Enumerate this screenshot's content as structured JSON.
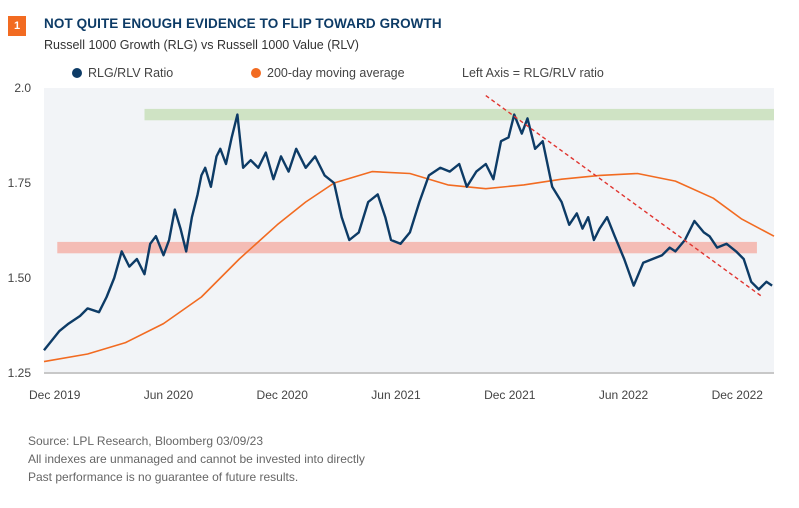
{
  "header": {
    "badge": "1",
    "title": "NOT QUITE ENOUGH EVIDENCE TO FLIP TOWARD GROWTH",
    "subtitle": "Russell 1000 Growth (RLG) vs Russell 1000 Value (RLV)"
  },
  "legend": {
    "items": [
      {
        "label": "RLG/RLV Ratio",
        "color": "#0d3b66",
        "icon": "circle-dot-icon"
      },
      {
        "label": "200-day moving average",
        "color": "#f26b21",
        "icon": "circle-dot-icon"
      }
    ],
    "note": "Left Axis = RLG/RLV ratio"
  },
  "footer": {
    "lines": [
      "Source: LPL Research, Bloomberg  03/09/23",
      "All indexes are unmanaged and cannot be invested into directly",
      "Past performance is no guarantee of future results."
    ]
  },
  "chart_data": {
    "type": "line",
    "title": "NOT QUITE ENOUGH EVIDENCE TO FLIP TOWARD GROWTH",
    "subtitle": "Russell 1000 Growth (RLG) vs Russell 1000 Value (RLV)",
    "xlabel": "",
    "ylabel": "RLG/RLV ratio",
    "x_unit": "months since Dec 2019",
    "xlim": [
      -0.3,
      38.2
    ],
    "ylim": [
      1.25,
      2.0
    ],
    "yticks": [
      2.0,
      1.75,
      1.5,
      1.25
    ],
    "ytick_labels": [
      "2.0",
      "1.75",
      "1.50",
      "1.25"
    ],
    "xticks": [
      0,
      6,
      12,
      18,
      24,
      30,
      36
    ],
    "xtick_labels": [
      "Dec 2019",
      "Jun 2020",
      "Dec 2020",
      "Jun 2021",
      "Dec 2021",
      "Jun 2022",
      "Dec 2022"
    ],
    "grid": false,
    "legend_position": "top",
    "colors": {
      "ratio": "#0d3b66",
      "moving_average": "#f26b21",
      "plot_bg": "#f2f4f7",
      "resistance_band": "#cfe3c4",
      "support_band": "#f4bcb5",
      "trendline": "#e0342f"
    },
    "series": [
      {
        "name": "RLG/RLV Ratio",
        "x": [
          -0.3,
          0.5,
          1.0,
          1.6,
          2.0,
          2.6,
          3.0,
          3.4,
          3.8,
          4.2,
          4.6,
          5.0,
          5.3,
          5.6,
          6.0,
          6.3,
          6.6,
          6.9,
          7.2,
          7.5,
          7.8,
          8.0,
          8.2,
          8.5,
          8.8,
          9.0,
          9.3,
          9.6,
          9.9,
          10.2,
          10.6,
          11.0,
          11.4,
          11.8,
          12.2,
          12.6,
          13.0,
          13.5,
          14.0,
          14.5,
          15.0,
          15.4,
          15.8,
          16.3,
          16.8,
          17.3,
          17.7,
          18.0,
          18.5,
          19.0,
          19.5,
          20.0,
          20.6,
          21.1,
          21.6,
          22.0,
          22.5,
          23.0,
          23.4,
          23.8,
          24.2,
          24.5,
          24.9,
          25.2,
          25.6,
          26.0,
          26.5,
          27.0,
          27.4,
          27.8,
          28.1,
          28.4,
          28.7,
          29.0,
          29.4,
          29.8,
          30.3,
          30.8,
          31.3,
          31.8,
          32.3,
          32.7,
          33.0,
          33.5,
          34.0,
          34.5,
          34.8,
          35.2,
          35.7,
          36.2,
          36.6,
          37.0,
          37.4,
          37.8,
          38.1
        ],
        "values": [
          1.31,
          1.36,
          1.38,
          1.4,
          1.42,
          1.41,
          1.45,
          1.5,
          1.57,
          1.53,
          1.55,
          1.51,
          1.59,
          1.61,
          1.56,
          1.6,
          1.68,
          1.63,
          1.57,
          1.66,
          1.72,
          1.77,
          1.79,
          1.74,
          1.82,
          1.84,
          1.8,
          1.87,
          1.93,
          1.79,
          1.81,
          1.79,
          1.83,
          1.76,
          1.82,
          1.78,
          1.84,
          1.79,
          1.82,
          1.77,
          1.75,
          1.66,
          1.6,
          1.62,
          1.7,
          1.72,
          1.66,
          1.6,
          1.59,
          1.62,
          1.7,
          1.77,
          1.79,
          1.78,
          1.8,
          1.74,
          1.78,
          1.8,
          1.76,
          1.86,
          1.87,
          1.93,
          1.88,
          1.92,
          1.84,
          1.86,
          1.74,
          1.7,
          1.64,
          1.67,
          1.63,
          1.66,
          1.6,
          1.63,
          1.66,
          1.61,
          1.55,
          1.48,
          1.54,
          1.55,
          1.56,
          1.58,
          1.57,
          1.6,
          1.65,
          1.62,
          1.61,
          1.58,
          1.59,
          1.57,
          1.55,
          1.49,
          1.47,
          1.49,
          1.48
        ],
        "color": "#0d3b66"
      },
      {
        "name": "200-day moving average",
        "x": [
          -0.3,
          2,
          4,
          6,
          8,
          10,
          12,
          13.5,
          15,
          17,
          19,
          21,
          23,
          25,
          27,
          29,
          31,
          33,
          35,
          36.5,
          38.2
        ],
        "values": [
          1.28,
          1.3,
          1.33,
          1.38,
          1.45,
          1.55,
          1.64,
          1.7,
          1.75,
          1.78,
          1.775,
          1.745,
          1.735,
          1.745,
          1.76,
          1.77,
          1.775,
          1.755,
          1.71,
          1.655,
          1.61
        ],
        "color": "#f26b21"
      }
    ],
    "annotations": [
      {
        "type": "band",
        "name": "resistance-band",
        "y_range": [
          1.915,
          1.945
        ],
        "x_range": [
          5.0,
          38.2
        ],
        "color": "#cfe3c4"
      },
      {
        "type": "band",
        "name": "support-band",
        "y_range": [
          1.565,
          1.595
        ],
        "x_range": [
          0.4,
          37.3
        ],
        "color": "#f4bcb5"
      },
      {
        "type": "trendline",
        "name": "downtrend-line",
        "from": [
          23.0,
          1.98
        ],
        "to": [
          37.6,
          1.45
        ],
        "style": "dashed",
        "color": "#e0342f"
      }
    ]
  }
}
